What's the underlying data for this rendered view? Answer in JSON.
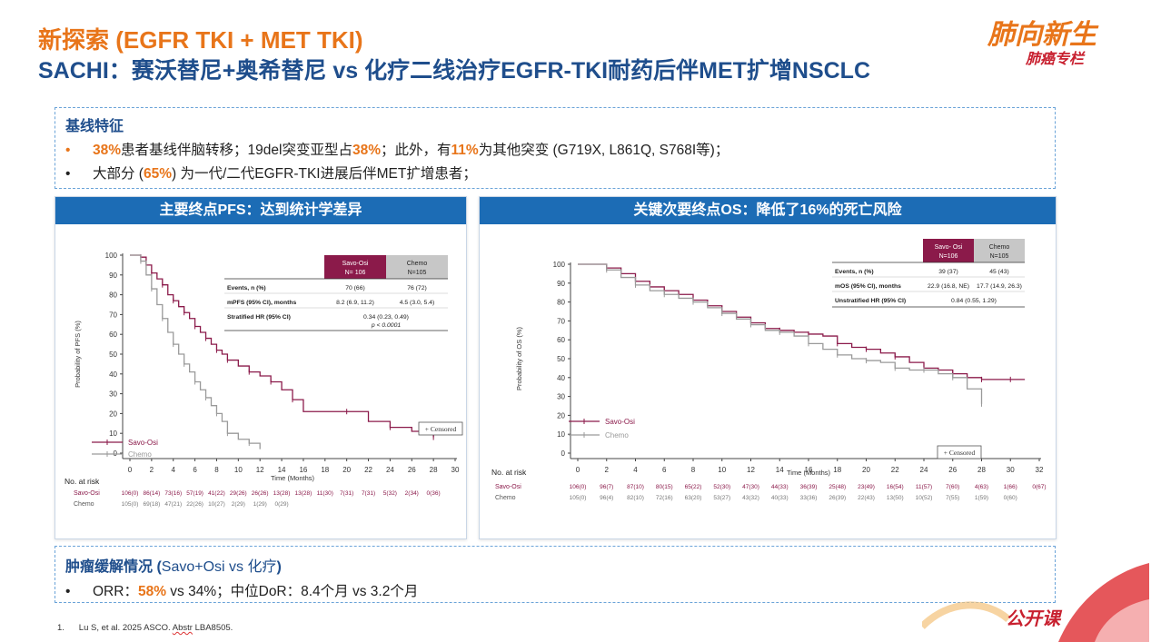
{
  "header": {
    "title_line1": "新探索 (EGFR TKI + MET TKI)",
    "title_line2": "SACHI：赛沃替尼+奥希替尼 vs 化疗二线治疗EGFR-TKI耐药后伴MET扩增NSCLC"
  },
  "logo": {
    "line1": "肺向新生",
    "line2": "肺癌专栏",
    "bottom_text": "公开课"
  },
  "baseline": {
    "heading": "基线特征",
    "bullet1": {
      "p1": "38%",
      "p2": "患者基线伴脑转移；19del突变亚型占",
      "p3": "38%",
      "p4": "；此外，有",
      "p5": "11%",
      "p6": "为其他突变 (G719X, L861Q, S768I等)；"
    },
    "bullet2": {
      "p1": "大部分 (",
      "p2": "65%",
      "p3": ") 为一代/二代EGFR-TKI进展后伴MET扩增患者；"
    }
  },
  "tumor": {
    "heading_a": "肿瘤缓解情况 (",
    "heading_b": "Savo+Osi vs 化疗",
    "heading_c": ")",
    "bullet": {
      "p1": "ORR：",
      "p2": "58%",
      "p3": " vs 34%；中位DoR：8.4个月 vs 3.2个月"
    }
  },
  "footnote": {
    "num": "1.",
    "a": "Lu S, et al. 2025 ASCO. ",
    "b": "Abstr",
    "c": " LBA8505."
  },
  "colors": {
    "savo": "#8B1A4A",
    "chemo": "#9A9A9A",
    "header_blue": "#1C6CB5",
    "accent": "#E8751A"
  },
  "chart_data": [
    {
      "panel_title": "主要终点PFS：达到统计学差异",
      "type": "line",
      "ylabel": "Probability of PFS (%)",
      "xlabel": "Time (Months)",
      "xlim": [
        0,
        30
      ],
      "ylim": [
        0,
        100
      ],
      "xticks": [
        0,
        2,
        4,
        6,
        8,
        10,
        12,
        14,
        16,
        18,
        20,
        22,
        24,
        26,
        28,
        30
      ],
      "yticks": [
        0,
        10,
        20,
        30,
        40,
        50,
        60,
        70,
        80,
        90,
        100
      ],
      "legend": "bottom-left",
      "censored_label": "+ Censored",
      "series": [
        {
          "name": "Savo-Osi",
          "color": "#8B1A4A",
          "x": [
            0,
            1,
            1.5,
            2,
            2.5,
            3,
            3.5,
            4,
            4.5,
            5,
            5.5,
            6,
            6.5,
            7,
            7.5,
            8,
            8.5,
            9,
            10,
            11,
            12,
            13,
            14,
            15,
            16,
            20,
            22,
            24,
            26,
            28
          ],
          "y": [
            100,
            99,
            95,
            91,
            88,
            85,
            80,
            77,
            74,
            71,
            68,
            64,
            61,
            58,
            55,
            52,
            50,
            47,
            44,
            41,
            39,
            36,
            32,
            27,
            21,
            21,
            16,
            13,
            11,
            8
          ]
        },
        {
          "name": "Chemo",
          "color": "#9A9A9A",
          "x": [
            0,
            1,
            1.5,
            2,
            2.5,
            3,
            3.5,
            4,
            4.5,
            5,
            5.5,
            6,
            6.5,
            7,
            7.5,
            8,
            8.5,
            9,
            10,
            11,
            12
          ],
          "y": [
            100,
            97,
            90,
            83,
            75,
            68,
            61,
            55,
            50,
            45,
            41,
            36,
            32,
            28,
            24,
            20,
            16,
            10,
            7,
            5,
            2
          ]
        }
      ],
      "table": {
        "col_headers": [
          [
            "Savo-Osi",
            "N= 106"
          ],
          [
            "Chemo",
            "N=105"
          ]
        ],
        "rows": [
          {
            "label": "Events, n (%)",
            "savo": "70 (66)",
            "chemo": "76 (72)"
          },
          {
            "label": "mPFS (95% CI), months",
            "savo": "8.2 (6.9, 11.2)",
            "chemo": "4.5 (3.0, 5.4)"
          },
          {
            "label": "Stratified HR (95% CI)",
            "merged": "0.34 (0.23, 0.49)",
            "merged2": "p < 0.0001"
          }
        ]
      },
      "at_risk": {
        "title": "No. at risk",
        "labels": [
          "Savo-Osi",
          "Chemo"
        ],
        "savo": [
          "106(0)",
          "86(14)",
          "73(16)",
          "57(19)",
          "41(22)",
          "29(26)",
          "26(26)",
          "13(28)",
          "13(28)",
          "11(30)",
          "7(31)",
          "7(31)",
          "5(32)",
          "2(34)",
          "0(36)"
        ],
        "chemo": [
          "105(0)",
          "69(18)",
          "47(21)",
          "22(26)",
          "10(27)",
          "2(29)",
          "1(29)",
          "0(29)"
        ]
      }
    },
    {
      "panel_title": "关键次要终点OS：降低了16%的死亡风险",
      "type": "line",
      "ylabel": "Probability of OS (%)",
      "xlabel": "Time (Months)",
      "xlim": [
        0,
        32
      ],
      "ylim": [
        0,
        100
      ],
      "xticks": [
        0,
        2,
        4,
        6,
        8,
        10,
        12,
        14,
        16,
        18,
        20,
        22,
        24,
        26,
        28,
        30,
        32
      ],
      "yticks": [
        0,
        10,
        20,
        30,
        40,
        50,
        60,
        70,
        80,
        90,
        100
      ],
      "legend": "bottom-left",
      "censored_label": "+ Censored",
      "series": [
        {
          "name": "Savo-Osi",
          "color": "#8B1A4A",
          "x": [
            0,
            2,
            3,
            4,
            5,
            6,
            7,
            8,
            9,
            10,
            11,
            12,
            13,
            14,
            15,
            16,
            17,
            18,
            19,
            20,
            21,
            22,
            23,
            24,
            25,
            26,
            27,
            28,
            29,
            30,
            31
          ],
          "y": [
            100,
            98,
            95,
            91,
            88,
            86,
            84,
            81,
            78,
            75,
            72,
            69,
            66,
            65,
            64,
            63,
            62,
            58,
            56,
            55,
            53,
            51,
            48,
            45,
            44,
            42,
            40,
            39,
            39,
            39,
            39
          ]
        },
        {
          "name": "Chemo",
          "color": "#9A9A9A",
          "x": [
            0,
            2,
            3,
            4,
            5,
            6,
            7,
            8,
            9,
            10,
            11,
            12,
            13,
            14,
            15,
            16,
            17,
            18,
            19,
            20,
            21,
            22,
            23,
            24,
            25,
            26,
            27,
            28
          ],
          "y": [
            100,
            97,
            93,
            89,
            86,
            84,
            82,
            80,
            77,
            74,
            71,
            68,
            65,
            64,
            62,
            58,
            55,
            52,
            50,
            49,
            48,
            45,
            44,
            44,
            42,
            40,
            34,
            26
          ]
        }
      ],
      "table": {
        "col_headers": [
          [
            "Savo- Osi",
            "N=106"
          ],
          [
            "Chemo",
            "N=105"
          ]
        ],
        "rows": [
          {
            "label": "Events, n (%)",
            "savo": "39 (37)",
            "chemo": "45 (43)"
          },
          {
            "label": "mOS (95% CI), months",
            "savo": "22.9 (16.8, NE)",
            "chemo": "17.7 (14.9, 26.3)"
          },
          {
            "label": "Unstratified HR (95% CI)",
            "merged": "0.84 (0.55, 1.29)"
          }
        ]
      },
      "at_risk": {
        "title": "No. at risk",
        "labels": [
          "Savo-Osi",
          "Chemo"
        ],
        "savo": [
          "106(0)",
          "96(7)",
          "87(10)",
          "80(15)",
          "65(22)",
          "52(30)",
          "47(30)",
          "44(33)",
          "36(39)",
          "25(48)",
          "23(49)",
          "16(54)",
          "11(57)",
          "7(60)",
          "4(63)",
          "1(66)",
          "0(67)"
        ],
        "chemo": [
          "105(0)",
          "96(4)",
          "82(10)",
          "72(16)",
          "63(20)",
          "53(27)",
          "43(32)",
          "40(33)",
          "33(36)",
          "26(39)",
          "22(43)",
          "13(50)",
          "10(52)",
          "7(55)",
          "1(59)",
          "0(60)"
        ]
      }
    }
  ]
}
